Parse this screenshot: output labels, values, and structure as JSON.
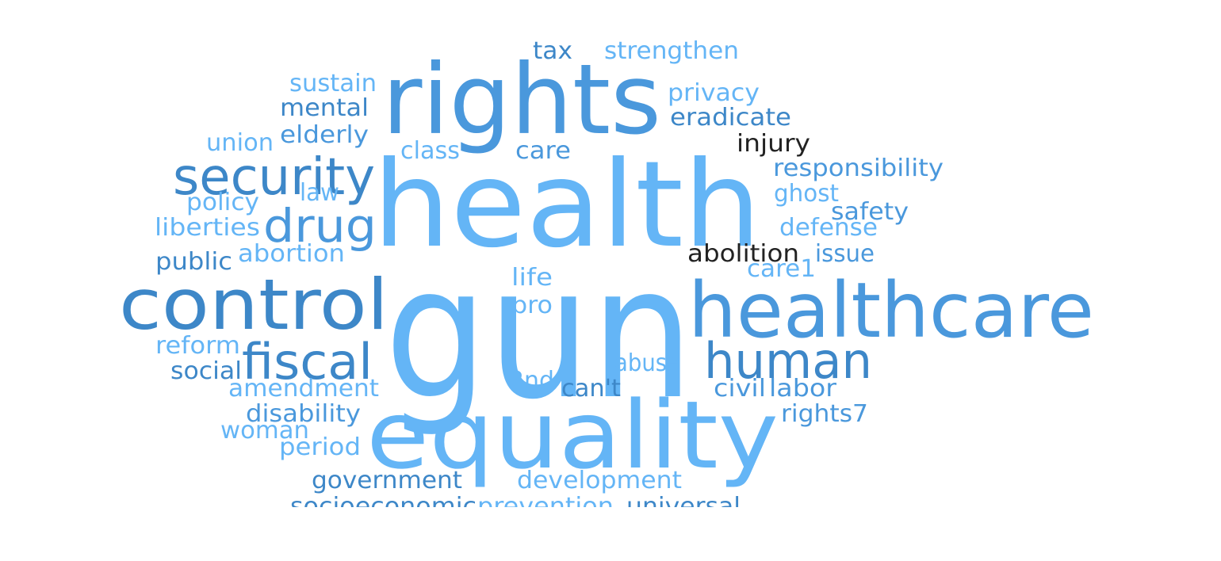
{
  "palette": {
    "light": "#64b5f6",
    "mid": "#5aa8e8",
    "medium": "#4a98dc",
    "dark": "#3d87c8",
    "black": "#222222"
  },
  "words": [
    {
      "text": "gun",
      "tone": "light"
    },
    {
      "text": "health",
      "tone": "light"
    },
    {
      "text": "equality",
      "tone": "light"
    },
    {
      "text": "rights",
      "tone": "medium"
    },
    {
      "text": "healthcare",
      "tone": "medium"
    },
    {
      "text": "control",
      "tone": "dark"
    },
    {
      "text": "security",
      "tone": "dark"
    },
    {
      "text": "human",
      "tone": "dark"
    },
    {
      "text": "fiscal",
      "tone": "dark"
    },
    {
      "text": "drug",
      "tone": "medium"
    },
    {
      "text": "tax",
      "tone": "dark"
    },
    {
      "text": "strengthen",
      "tone": "light"
    },
    {
      "text": "sustain",
      "tone": "light"
    },
    {
      "text": "privacy",
      "tone": "light"
    },
    {
      "text": "mental",
      "tone": "dark"
    },
    {
      "text": "eradicate",
      "tone": "dark"
    },
    {
      "text": "elderly",
      "tone": "medium"
    },
    {
      "text": "union",
      "tone": "light"
    },
    {
      "text": "class",
      "tone": "light"
    },
    {
      "text": "care",
      "tone": "medium"
    },
    {
      "text": "injury",
      "tone": "black"
    },
    {
      "text": "responsibility",
      "tone": "medium"
    },
    {
      "text": "law",
      "tone": "light"
    },
    {
      "text": "ghost",
      "tone": "light"
    },
    {
      "text": "policy",
      "tone": "light"
    },
    {
      "text": "safety",
      "tone": "medium"
    },
    {
      "text": "liberties",
      "tone": "light"
    },
    {
      "text": "defense",
      "tone": "light"
    },
    {
      "text": "abortion",
      "tone": "light"
    },
    {
      "text": "abolition",
      "tone": "black"
    },
    {
      "text": "issue",
      "tone": "medium"
    },
    {
      "text": "public",
      "tone": "dark"
    },
    {
      "text": "care1",
      "tone": "light"
    },
    {
      "text": "life",
      "tone": "light"
    },
    {
      "text": "pro",
      "tone": "light"
    },
    {
      "text": "reform",
      "tone": "light"
    },
    {
      "text": "abuse",
      "tone": "light"
    },
    {
      "text": "social",
      "tone": "dark"
    },
    {
      "text": "2nd",
      "tone": "light"
    },
    {
      "text": "amendment",
      "tone": "light"
    },
    {
      "text": "can't",
      "tone": "dark"
    },
    {
      "text": "civil",
      "tone": "medium"
    },
    {
      "text": "labor",
      "tone": "medium"
    },
    {
      "text": "disability",
      "tone": "medium"
    },
    {
      "text": "rights7",
      "tone": "medium"
    },
    {
      "text": "woman",
      "tone": "light"
    },
    {
      "text": "period",
      "tone": "light"
    },
    {
      "text": "government",
      "tone": "dark"
    },
    {
      "text": "development",
      "tone": "light"
    },
    {
      "text": "socioeconomic",
      "tone": "dark"
    },
    {
      "text": "prevention",
      "tone": "light"
    },
    {
      "text": "universal",
      "tone": "dark"
    }
  ]
}
